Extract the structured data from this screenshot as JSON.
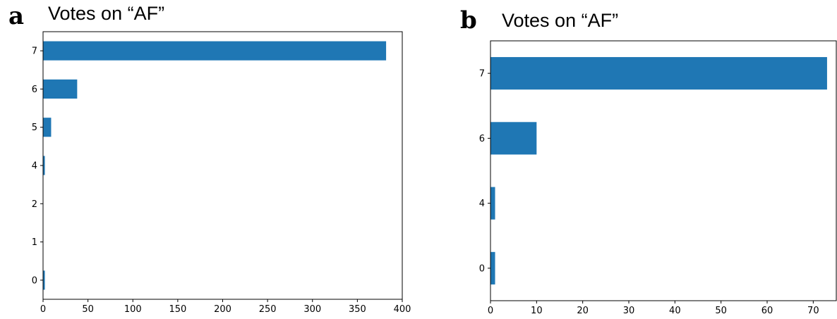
{
  "colors": {
    "bar": "#1f77b4"
  },
  "chart_data": [
    {
      "panel": "a",
      "type": "bar",
      "orientation": "horizontal",
      "title": "Votes on “AF”",
      "categories": [
        "0",
        "1",
        "2",
        "4",
        "5",
        "6",
        "7"
      ],
      "values": [
        2,
        0,
        0,
        2,
        9,
        38,
        382
      ],
      "xlim": [
        0,
        400
      ],
      "xticks": [
        "0",
        "50",
        "100",
        "150",
        "200",
        "250",
        "300",
        "350",
        "400"
      ],
      "grid": false,
      "xlabel": "",
      "ylabel": ""
    },
    {
      "panel": "b",
      "type": "bar",
      "orientation": "horizontal",
      "title": "Votes on “AF”",
      "categories": [
        "0",
        "4",
        "6",
        "7"
      ],
      "values": [
        1,
        1,
        10,
        73
      ],
      "xlim": [
        0,
        75
      ],
      "xticks": [
        "0",
        "10",
        "20",
        "30",
        "40",
        "50",
        "60",
        "70"
      ],
      "grid": false,
      "xlabel": "",
      "ylabel": ""
    }
  ]
}
